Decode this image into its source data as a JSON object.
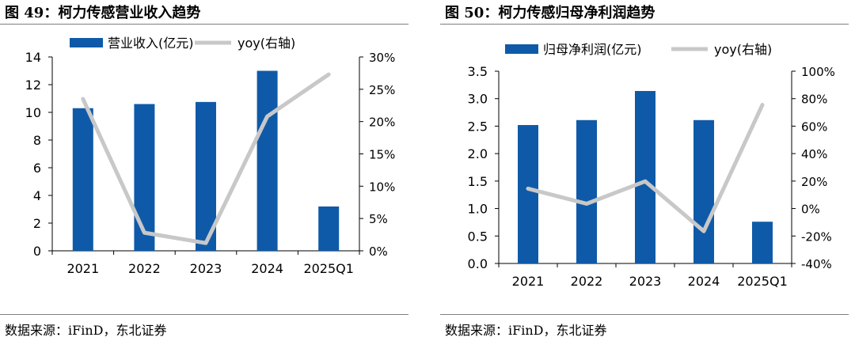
{
  "colors": {
    "bar": "#0f5aa8",
    "line": "#c8c8c8",
    "axis": "#000000"
  },
  "chart_data": [
    {
      "type": "bar+line",
      "title": "图 49：柯力传感营业收入趋势",
      "source": "数据来源：iFinD，东北证券",
      "categories": [
        "2021",
        "2022",
        "2023",
        "2024",
        "2025Q1"
      ],
      "series": [
        {
          "name": "营业收入(亿元)",
          "type": "bar",
          "axis": "left",
          "values": [
            10.3,
            10.6,
            10.75,
            13.0,
            3.2
          ]
        },
        {
          "name": "yoy(右轴)",
          "type": "line",
          "axis": "right",
          "values": [
            23.5,
            2.8,
            1.2,
            20.8,
            27.3
          ]
        }
      ],
      "yleft": {
        "min": 0,
        "max": 14,
        "step": 2,
        "ticks": [
          "0",
          "2",
          "4",
          "6",
          "8",
          "10",
          "12",
          "14"
        ]
      },
      "yright": {
        "min": 0,
        "max": 30,
        "step": 5,
        "ticks": [
          "0%",
          "5%",
          "10%",
          "15%",
          "20%",
          "25%",
          "30%"
        ]
      },
      "legend": "top",
      "grid": false
    },
    {
      "type": "bar+line",
      "title": "图 50：柯力传感归母净利润趋势",
      "source": "数据来源：iFinD，东北证券",
      "categories": [
        "2021",
        "2022",
        "2023",
        "2024",
        "2025Q1"
      ],
      "series": [
        {
          "name": "归母净利润(亿元)",
          "type": "bar",
          "axis": "left",
          "values": [
            2.52,
            2.61,
            3.14,
            2.61,
            0.76
          ]
        },
        {
          "name": "yoy(右轴)",
          "type": "line",
          "axis": "right",
          "values": [
            14.5,
            3.5,
            19.8,
            -16.5,
            75.5
          ]
        }
      ],
      "yleft": {
        "min": 0,
        "max": 3.5,
        "step": 0.5,
        "ticks": [
          "0.0",
          "0.5",
          "1.0",
          "1.5",
          "2.0",
          "2.5",
          "3.0",
          "3.5"
        ]
      },
      "yright": {
        "min": -40,
        "max": 100,
        "step": 20,
        "ticks": [
          "-40%",
          "-20%",
          "0%",
          "20%",
          "40%",
          "60%",
          "80%",
          "100%"
        ]
      },
      "legend": "top",
      "grid": false
    }
  ]
}
